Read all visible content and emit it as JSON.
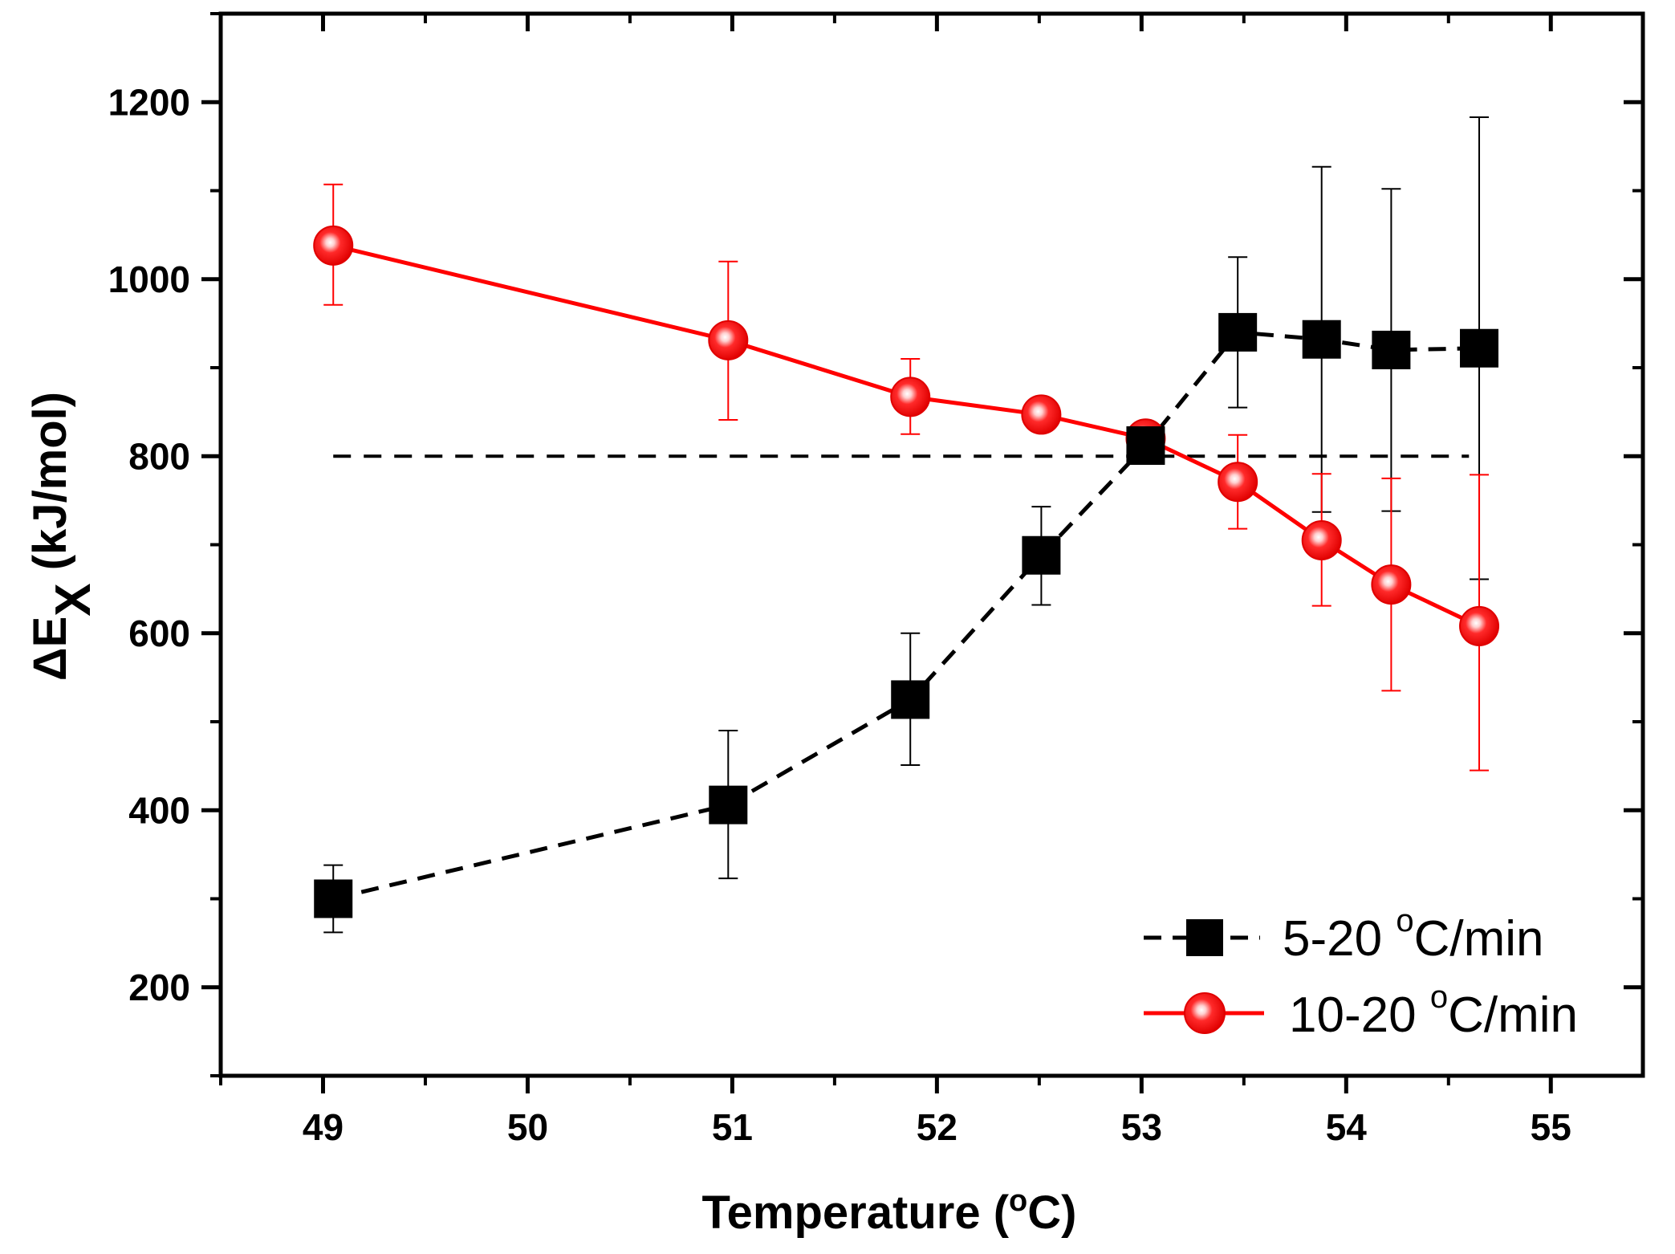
{
  "chart_data": {
    "type": "scatter",
    "xlabel": "Temperature (°C)",
    "xlabel_main": "Temperature (",
    "xlabel_sup": "o",
    "xlabel_unit": "C)",
    "ylabel_delta": "ΔE",
    "ylabel_sub": "X",
    "ylabel_unit": " (kJ/mol)",
    "xlim": [
      48.5,
      55.45
    ],
    "ylim": [
      100,
      1300
    ],
    "xticks": [
      49,
      50,
      51,
      52,
      53,
      54,
      55
    ],
    "xtick_labels": [
      "49",
      "50",
      "51",
      "52",
      "53",
      "54",
      "55"
    ],
    "yticks": [
      200,
      400,
      600,
      800,
      1000,
      1200
    ],
    "ytick_labels": [
      "200",
      "400",
      "600",
      "800",
      "1000",
      "1200"
    ],
    "reference_line": {
      "y": 800,
      "x_start": 49.05,
      "x_end": 54.6,
      "style": "dashed",
      "color": "#000000"
    },
    "legend_position": "bottom-right",
    "series": [
      {
        "name": "5-20 °C/min",
        "legend_prefix": "5-20 ",
        "legend_sup": "o",
        "legend_suffix": "C/min",
        "marker": "square",
        "line": "dashed",
        "color": "#000000",
        "points": [
          {
            "x": 49.05,
            "y": 300,
            "err_low": 262,
            "err_high": 338
          },
          {
            "x": 50.98,
            "y": 406,
            "err_low": 323,
            "err_high": 490
          },
          {
            "x": 51.87,
            "y": 525,
            "err_low": 451,
            "err_high": 600
          },
          {
            "x": 52.51,
            "y": 688,
            "err_low": 632,
            "err_high": 743
          },
          {
            "x": 53.02,
            "y": 812,
            "err_low": 812,
            "err_high": 812
          },
          {
            "x": 53.47,
            "y": 940,
            "err_low": 855,
            "err_high": 1025
          },
          {
            "x": 53.88,
            "y": 932,
            "err_low": 737,
            "err_high": 1127
          },
          {
            "x": 54.22,
            "y": 920,
            "err_low": 738,
            "err_high": 1102
          },
          {
            "x": 54.65,
            "y": 922,
            "err_low": 661,
            "err_high": 1183
          }
        ]
      },
      {
        "name": "10-20 °C/min",
        "legend_prefix": "10-20 ",
        "legend_sup": "o",
        "legend_suffix": "C/min",
        "marker": "circle",
        "line": "solid",
        "color": "#ff0000",
        "points": [
          {
            "x": 49.05,
            "y": 1038,
            "err_low": 971,
            "err_high": 1107
          },
          {
            "x": 50.98,
            "y": 931,
            "err_low": 841,
            "err_high": 1020
          },
          {
            "x": 51.87,
            "y": 867,
            "err_low": 825,
            "err_high": 910
          },
          {
            "x": 52.51,
            "y": 847,
            "err_low": 847,
            "err_high": 847
          },
          {
            "x": 53.02,
            "y": 820,
            "err_low": 820,
            "err_high": 820
          },
          {
            "x": 53.47,
            "y": 771,
            "err_low": 718,
            "err_high": 824
          },
          {
            "x": 53.88,
            "y": 705,
            "err_low": 631,
            "err_high": 780
          },
          {
            "x": 54.22,
            "y": 655,
            "err_low": 535,
            "err_high": 775
          },
          {
            "x": 54.65,
            "y": 608,
            "err_low": 445,
            "err_high": 779
          }
        ]
      }
    ]
  }
}
